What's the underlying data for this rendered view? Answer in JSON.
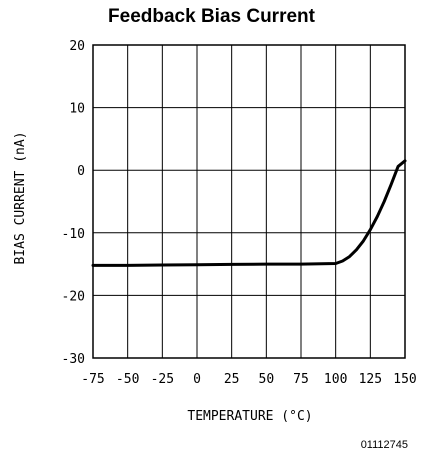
{
  "chart_data": {
    "type": "line",
    "title": "Feedback Bias Current",
    "xlabel": "TEMPERATURE (°C)",
    "ylabel": "BIAS CURRENT (nA)",
    "xlim": [
      -75,
      150
    ],
    "ylim": [
      -30,
      20
    ],
    "xticks": [
      -75,
      -50,
      -25,
      0,
      25,
      50,
      75,
      100,
      125,
      150
    ],
    "yticks": [
      20,
      10,
      0,
      -10,
      -20,
      -30
    ],
    "grid": true,
    "series": [
      {
        "x": [
          -75,
          -50,
          -25,
          0,
          25,
          50,
          75,
          100,
          105,
          110,
          115,
          120,
          125,
          130,
          135,
          140,
          145,
          150
        ],
        "y": [
          -15.2,
          -15.2,
          -15.15,
          -15.1,
          -15.05,
          -15.0,
          -15.0,
          -14.9,
          -14.5,
          -13.8,
          -12.7,
          -11.3,
          -9.5,
          -7.4,
          -5.0,
          -2.3,
          0.6,
          1.5
        ]
      }
    ]
  },
  "figure_id": "01112745"
}
